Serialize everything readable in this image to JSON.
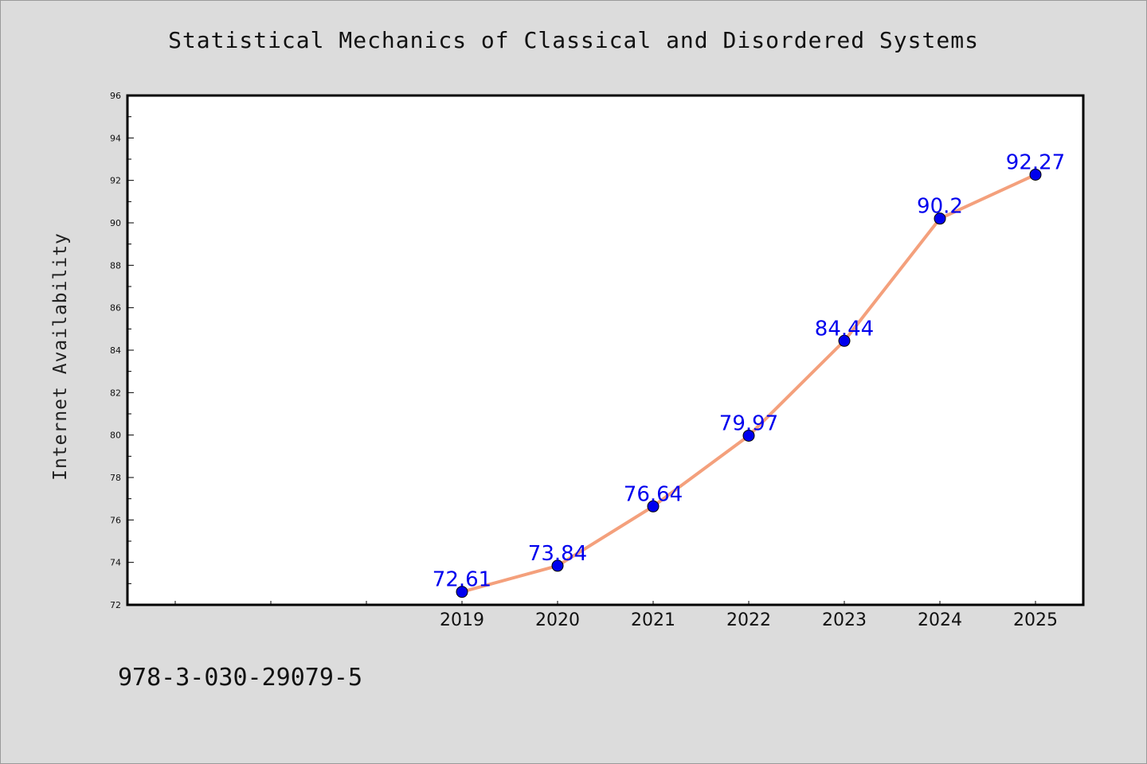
{
  "page": {
    "title": "Statistical Mechanics of Classical and Disordered Systems",
    "isbn": "978-3-030-29079-5"
  },
  "colors": {
    "background": "#dcdcdc",
    "plot_background": "#ffffff",
    "line": "#f4a07c",
    "marker": "#0000ee",
    "data_label": "#0000ee"
  },
  "chart_data": {
    "type": "line",
    "title": "Statistical Mechanics of Classical and Disordered Systems",
    "xlabel": "",
    "ylabel": "Internet Availability",
    "categories": [
      "2019",
      "2020",
      "2021",
      "2022",
      "2023",
      "2024",
      "2025"
    ],
    "x_slots_before_data": 3,
    "series": [
      {
        "values": [
          72.61,
          73.84,
          76.64,
          79.97,
          84.44,
          90.2,
          92.27
        ],
        "labels": [
          "72.61",
          "73.84",
          "76.64",
          "79.97",
          "84.44",
          "90.2",
          "92.27"
        ]
      }
    ],
    "ylim": [
      72,
      96
    ],
    "y_ticks": [
      72,
      74,
      76,
      78,
      80,
      82,
      84,
      86,
      88,
      90,
      92,
      94,
      96
    ],
    "grid": false,
    "legend": "none"
  }
}
